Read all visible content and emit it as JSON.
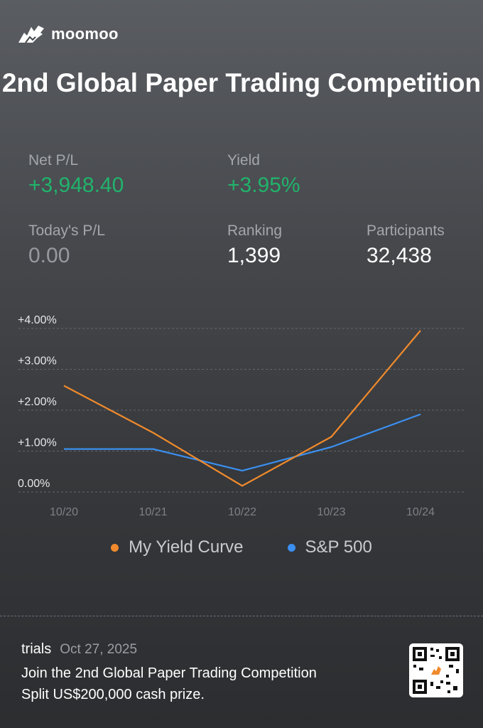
{
  "brand": {
    "name": "moomoo"
  },
  "title": "2nd Global Paper Trading Competition",
  "stats": {
    "net_pl": {
      "label": "Net P/L",
      "value": "+3,948.40"
    },
    "yield": {
      "label": "Yield",
      "value": "+3.95%"
    },
    "todays_pl": {
      "label": "Today's P/L",
      "value": "0.00"
    },
    "ranking": {
      "label": "Ranking",
      "value": "1,399"
    },
    "participants": {
      "label": "Participants",
      "value": "32,438"
    }
  },
  "colors": {
    "positive": "#21b36b",
    "my_curve": "#f08a2c",
    "sp500": "#3b8ff0"
  },
  "chart_data": {
    "type": "line",
    "x": [
      "10/20",
      "10/21",
      "10/22",
      "10/23",
      "10/24"
    ],
    "y_ticks": [
      "+4.00%",
      "+3.00%",
      "+2.00%",
      "+1.00%",
      "0.00%"
    ],
    "ylim": [
      0,
      4
    ],
    "grid": true,
    "legend_position": "bottom",
    "series": [
      {
        "name": "My Yield Curve",
        "color": "#f08a2c",
        "values": [
          2.6,
          1.45,
          0.15,
          1.35,
          3.95
        ]
      },
      {
        "name": "S&P 500",
        "color": "#3b8ff0",
        "values": [
          1.05,
          1.05,
          0.52,
          1.1,
          1.9
        ]
      }
    ]
  },
  "footer": {
    "user": "trials",
    "date": "Oct 27, 2025",
    "line1": "Join the 2nd Global Paper Trading Competition",
    "line2": "Split US$200,000 cash prize."
  }
}
